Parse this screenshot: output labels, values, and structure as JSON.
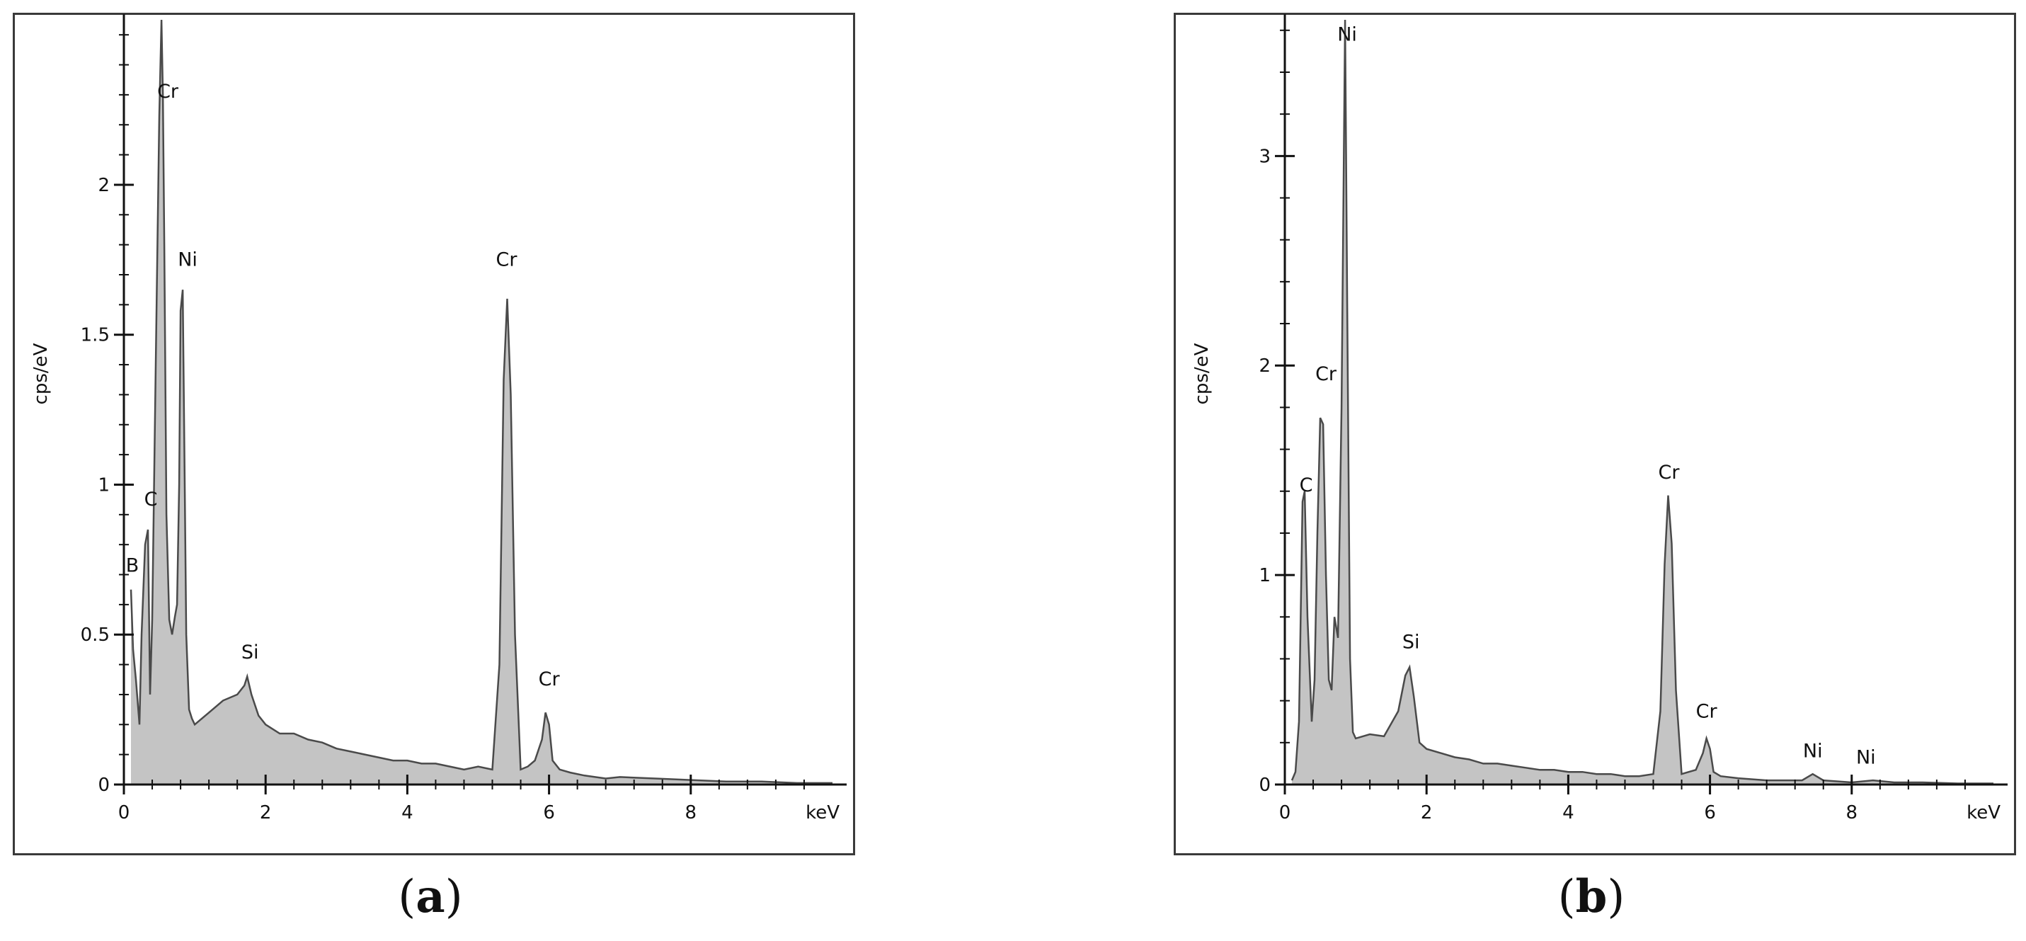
{
  "panels": [
    {
      "caption": {
        "open": "(",
        "letter": "a",
        "close": ")"
      },
      "chart_data": {
        "type": "area",
        "title": "",
        "xlabel": "keV",
        "ylabel": "cps/eV",
        "xlim": [
          0,
          10.2
        ],
        "ylim": [
          0,
          2.55
        ],
        "xticks": [
          "0",
          "2",
          "4",
          "6",
          "8"
        ],
        "xtick_values": [
          0,
          2,
          4,
          6,
          8
        ],
        "yticks": [
          "0",
          "0.5",
          "1",
          "1.5",
          "2"
        ],
        "ytick_values": [
          0,
          0.5,
          1,
          1.5,
          2
        ],
        "x": [
          0.1,
          0.13,
          0.17,
          0.22,
          0.25,
          0.3,
          0.34,
          0.37,
          0.4,
          0.45,
          0.5,
          0.53,
          0.55,
          0.57,
          0.6,
          0.64,
          0.68,
          0.72,
          0.75,
          0.78,
          0.8,
          0.83,
          0.85,
          0.88,
          0.92,
          0.96,
          1.0,
          1.2,
          1.4,
          1.6,
          1.7,
          1.74,
          1.8,
          1.9,
          2.0,
          2.2,
          2.4,
          2.6,
          2.8,
          3.0,
          3.2,
          3.4,
          3.6,
          3.8,
          4.0,
          4.2,
          4.4,
          4.6,
          4.8,
          5.0,
          5.2,
          5.3,
          5.36,
          5.41,
          5.46,
          5.52,
          5.6,
          5.7,
          5.8,
          5.9,
          5.95,
          6.0,
          6.05,
          6.15,
          6.3,
          6.5,
          6.8,
          7.0,
          7.5,
          8.0,
          8.5,
          9.0,
          9.5,
          10.0
        ],
        "y": [
          0.65,
          0.45,
          0.35,
          0.2,
          0.5,
          0.8,
          0.85,
          0.3,
          0.55,
          1.4,
          2.23,
          2.55,
          2.3,
          1.8,
          0.9,
          0.55,
          0.5,
          0.56,
          0.6,
          1.0,
          1.58,
          1.65,
          1.2,
          0.5,
          0.25,
          0.22,
          0.2,
          0.24,
          0.28,
          0.3,
          0.33,
          0.36,
          0.3,
          0.23,
          0.2,
          0.17,
          0.17,
          0.15,
          0.14,
          0.12,
          0.11,
          0.1,
          0.09,
          0.08,
          0.08,
          0.07,
          0.07,
          0.06,
          0.05,
          0.06,
          0.05,
          0.4,
          1.35,
          1.62,
          1.3,
          0.5,
          0.05,
          0.06,
          0.08,
          0.15,
          0.24,
          0.2,
          0.08,
          0.05,
          0.04,
          0.03,
          0.02,
          0.025,
          0.02,
          0.015,
          0.01,
          0.01,
          0.005,
          0.005
        ],
        "annotations": [
          {
            "text": "Cr",
            "x": 0.62,
            "y": 2.29
          },
          {
            "text": "Ni",
            "x": 0.9,
            "y": 1.73
          },
          {
            "text": "C",
            "x": 0.38,
            "y": 0.93
          },
          {
            "text": "B",
            "x": 0.12,
            "y": 0.71
          },
          {
            "text": "Si",
            "x": 1.78,
            "y": 0.42
          },
          {
            "text": "Cr",
            "x": 5.4,
            "y": 1.73
          },
          {
            "text": "Cr",
            "x": 6.0,
            "y": 0.33
          }
        ],
        "fill_color": "#c4c4c4",
        "line_color": "#4a4a4a"
      }
    },
    {
      "caption": {
        "open": "(",
        "letter": "b",
        "close": ")"
      },
      "chart_data": {
        "type": "area",
        "title": "",
        "xlabel": "keV",
        "ylabel": "cps/eV",
        "xlim": [
          0,
          10.2
        ],
        "ylim": [
          0,
          3.65
        ],
        "xticks": [
          "0",
          "2",
          "4",
          "6",
          "8"
        ],
        "xtick_values": [
          0,
          2,
          4,
          6,
          8
        ],
        "yticks": [
          "0",
          "1",
          "2",
          "3"
        ],
        "ytick_values": [
          0,
          1,
          2,
          3
        ],
        "x": [
          0.1,
          0.15,
          0.2,
          0.25,
          0.28,
          0.32,
          0.38,
          0.42,
          0.46,
          0.5,
          0.54,
          0.58,
          0.62,
          0.66,
          0.7,
          0.75,
          0.8,
          0.85,
          0.88,
          0.92,
          0.96,
          1.0,
          1.2,
          1.4,
          1.6,
          1.7,
          1.76,
          1.82,
          1.9,
          2.0,
          2.2,
          2.4,
          2.6,
          2.8,
          3.0,
          3.2,
          3.4,
          3.6,
          3.8,
          4.0,
          4.2,
          4.4,
          4.6,
          4.8,
          5.0,
          5.2,
          5.3,
          5.36,
          5.41,
          5.46,
          5.52,
          5.6,
          5.7,
          5.8,
          5.9,
          5.95,
          6.0,
          6.05,
          6.15,
          6.4,
          6.8,
          7.0,
          7.3,
          7.45,
          7.6,
          8.0,
          8.3,
          8.6,
          9.0,
          9.5,
          10.0
        ],
        "y": [
          0.02,
          0.06,
          0.3,
          1.35,
          1.4,
          0.8,
          0.3,
          0.5,
          1.2,
          1.75,
          1.72,
          1.0,
          0.5,
          0.45,
          0.8,
          0.7,
          1.8,
          3.65,
          2.3,
          0.6,
          0.25,
          0.22,
          0.24,
          0.23,
          0.35,
          0.52,
          0.56,
          0.42,
          0.2,
          0.17,
          0.15,
          0.13,
          0.12,
          0.1,
          0.1,
          0.09,
          0.08,
          0.07,
          0.07,
          0.06,
          0.06,
          0.05,
          0.05,
          0.04,
          0.04,
          0.05,
          0.35,
          1.05,
          1.38,
          1.15,
          0.45,
          0.05,
          0.06,
          0.07,
          0.15,
          0.22,
          0.17,
          0.06,
          0.04,
          0.03,
          0.02,
          0.02,
          0.02,
          0.05,
          0.02,
          0.01,
          0.02,
          0.01,
          0.01,
          0.005,
          0.005
        ],
        "annotations": [
          {
            "text": "Ni",
            "x": 0.88,
            "y": 3.55
          },
          {
            "text": "Cr",
            "x": 0.58,
            "y": 1.93
          },
          {
            "text": "C",
            "x": 0.3,
            "y": 1.4
          },
          {
            "text": "Si",
            "x": 1.78,
            "y": 0.65
          },
          {
            "text": "Cr",
            "x": 5.42,
            "y": 1.46
          },
          {
            "text": "Cr",
            "x": 5.95,
            "y": 0.32
          },
          {
            "text": "Ni",
            "x": 7.45,
            "y": 0.13
          },
          {
            "text": "Ni",
            "x": 8.2,
            "y": 0.1
          }
        ],
        "fill_color": "#c4c4c4",
        "line_color": "#4a4a4a"
      }
    }
  ]
}
